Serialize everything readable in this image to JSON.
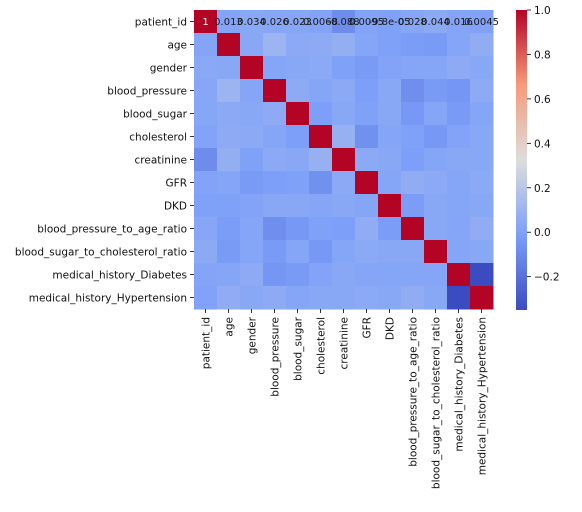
{
  "chart_data": {
    "type": "heatmap",
    "variables": [
      "patient_id",
      "age",
      "gender",
      "blood_pressure",
      "blood_sugar",
      "cholesterol",
      "creatinine",
      "GFR",
      "DKD",
      "blood_pressure_to_age_ratio",
      "blood_sugar_to_cholesterol_ratio",
      "medical_history_Diabetes",
      "medical_history_Hypertension"
    ],
    "matrix": [
      [
        1.0,
        0.013,
        0.034,
        0.026,
        0.023,
        0.0068,
        -0.088,
        0.0095,
        -9.8e-05,
        0.028,
        0.044,
        0.016,
        0.0045
      ],
      [
        0.013,
        1.0,
        0.03,
        0.1,
        0.04,
        0.05,
        0.07,
        0.02,
        0.0,
        -0.02,
        -0.03,
        0.02,
        0.06
      ],
      [
        0.034,
        0.03,
        1.0,
        0.02,
        0.03,
        0.04,
        0.0,
        -0.03,
        0.01,
        0.02,
        0.02,
        0.05,
        0.03
      ],
      [
        0.026,
        0.1,
        0.02,
        1.0,
        0.05,
        0.02,
        0.04,
        -0.01,
        0.03,
        -0.08,
        -0.03,
        -0.05,
        0.05
      ],
      [
        0.023,
        0.04,
        0.03,
        0.05,
        1.0,
        -0.01,
        0.03,
        0.0,
        0.03,
        -0.04,
        0.02,
        -0.03,
        0.02
      ],
      [
        0.0068,
        0.05,
        0.04,
        0.02,
        -0.01,
        1.0,
        0.08,
        -0.07,
        0.02,
        0.0,
        -0.04,
        0.01,
        0.03
      ],
      [
        -0.088,
        0.07,
        0.0,
        0.04,
        0.03,
        0.08,
        1.0,
        0.04,
        0.03,
        -0.01,
        0.02,
        0.03,
        0.03
      ],
      [
        0.0095,
        0.02,
        -0.03,
        -0.01,
        0.0,
        -0.07,
        0.04,
        1.0,
        0.02,
        0.06,
        0.04,
        0.02,
        0.04
      ],
      [
        -9.8e-05,
        0.0,
        0.01,
        0.03,
        0.03,
        0.02,
        0.03,
        0.02,
        1.0,
        -0.02,
        0.03,
        0.02,
        0.03
      ],
      [
        0.028,
        -0.02,
        0.02,
        -0.08,
        -0.04,
        0.0,
        -0.01,
        0.06,
        -0.02,
        1.0,
        0.03,
        0.02,
        0.06
      ],
      [
        0.044,
        -0.03,
        0.02,
        -0.03,
        0.02,
        -0.04,
        0.02,
        0.04,
        0.03,
        0.03,
        1.0,
        0.02,
        0.03
      ],
      [
        0.016,
        0.02,
        0.05,
        -0.05,
        -0.03,
        0.01,
        0.03,
        0.02,
        0.02,
        0.02,
        0.02,
        1.0,
        -0.35
      ],
      [
        0.0045,
        0.06,
        0.03,
        0.05,
        0.02,
        0.03,
        0.03,
        0.04,
        0.03,
        0.06,
        0.03,
        -0.35,
        1.0
      ]
    ],
    "annotated_row": 0,
    "annotations": [
      "1",
      "0.013",
      "0.034",
      "0.026",
      "0.023",
      "0.0068",
      "-0.088",
      "0.0095",
      "-9.8e-05",
      "0.028",
      "0.044",
      "0.016",
      "0.0045"
    ],
    "colormap": "coolwarm",
    "colorbar": {
      "range": [
        -0.35,
        1.0
      ],
      "ticks": [
        1.0,
        0.8,
        0.6,
        0.4,
        0.2,
        0.0,
        -0.2
      ],
      "tick_labels": [
        "1.0",
        "0.8",
        "0.6",
        "0.4",
        "0.2",
        "0.0",
        "−0.2"
      ]
    },
    "title": "",
    "xlabel": "",
    "ylabel": ""
  }
}
